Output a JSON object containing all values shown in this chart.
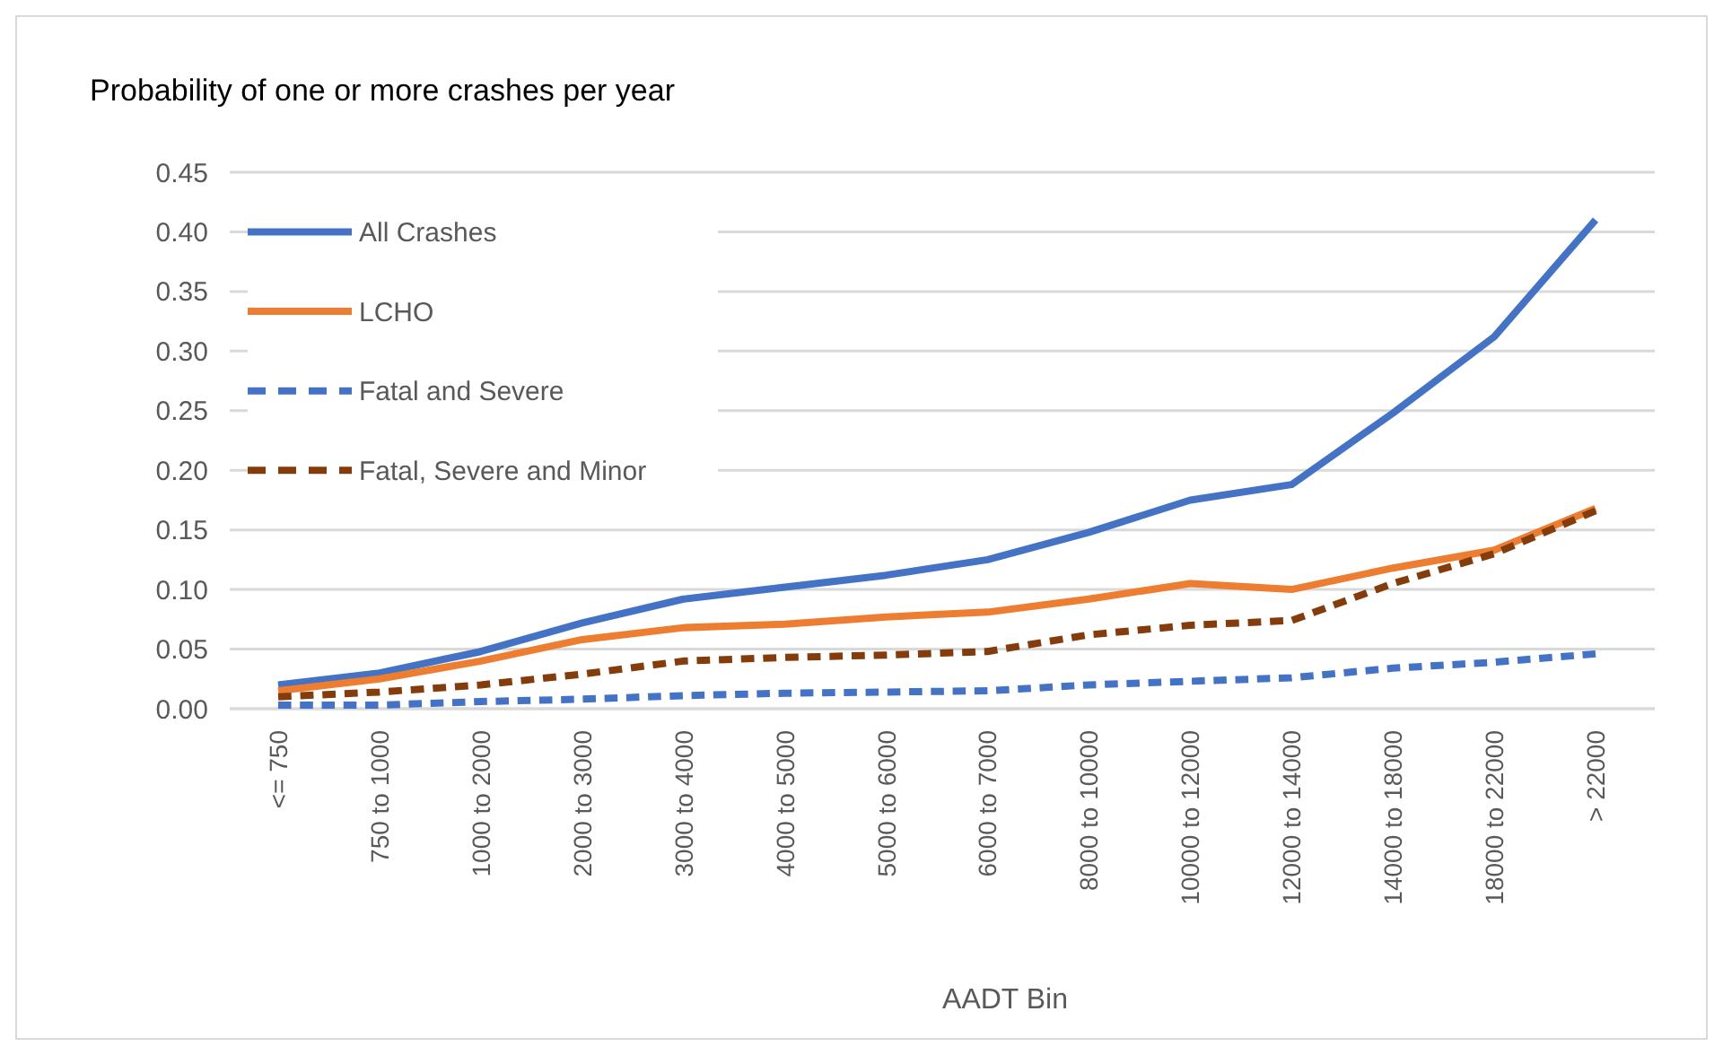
{
  "chart_data": {
    "type": "line",
    "title": "Probability of one or more crashes per year",
    "xlabel": "AADT Bin",
    "categories": [
      "<= 750",
      "750 to 1000",
      "1000 to 2000",
      "2000 to 3000",
      "3000 to 4000",
      "4000 to 5000",
      "5000 to 6000",
      "6000 to 7000",
      "8000 to 10000",
      "10000 to 12000",
      "12000 to 14000",
      "14000 to 18000",
      "18000 to 22000",
      "> 22000"
    ],
    "series": [
      {
        "name": "All Crashes",
        "color": "#4472c4",
        "line_style": "solid",
        "values": [
          0.02,
          0.03,
          0.048,
          0.072,
          0.092,
          0.102,
          0.112,
          0.125,
          0.148,
          0.175,
          0.188,
          0.248,
          0.312,
          0.41
        ]
      },
      {
        "name": "LCHO",
        "color": "#ed7d31",
        "line_style": "solid",
        "values": [
          0.015,
          0.025,
          0.04,
          0.058,
          0.068,
          0.071,
          0.077,
          0.081,
          0.092,
          0.105,
          0.1,
          0.118,
          0.133,
          0.168
        ]
      },
      {
        "name": "Fatal and Severe",
        "color": "#4472c4",
        "line_style": "dashed",
        "values": [
          0.003,
          0.003,
          0.006,
          0.008,
          0.011,
          0.013,
          0.014,
          0.015,
          0.02,
          0.023,
          0.026,
          0.034,
          0.039,
          0.046
        ]
      },
      {
        "name": "Fatal, Severe and Minor",
        "color": "#843c0c",
        "line_style": "dashed",
        "values": [
          0.01,
          0.014,
          0.02,
          0.029,
          0.04,
          0.043,
          0.045,
          0.048,
          0.062,
          0.07,
          0.074,
          0.105,
          0.13,
          0.166
        ]
      }
    ],
    "ylim": [
      0,
      0.45
    ],
    "yticks": [
      {
        "value": 0,
        "label": "0.00"
      },
      {
        "value": 0.05,
        "label": "0.05"
      },
      {
        "value": 0.1,
        "label": "0.10"
      },
      {
        "value": 0.15,
        "label": "0.15"
      },
      {
        "value": 0.2,
        "label": "0.20"
      },
      {
        "value": 0.25,
        "label": "0.25"
      },
      {
        "value": 0.3,
        "label": "0.30"
      },
      {
        "value": 0.35,
        "label": "0.35"
      },
      {
        "value": 0.4,
        "label": "0.40"
      },
      {
        "value": 0.45,
        "label": "0.45"
      }
    ],
    "grid": "y",
    "legend": "top left",
    "marker": "none"
  }
}
